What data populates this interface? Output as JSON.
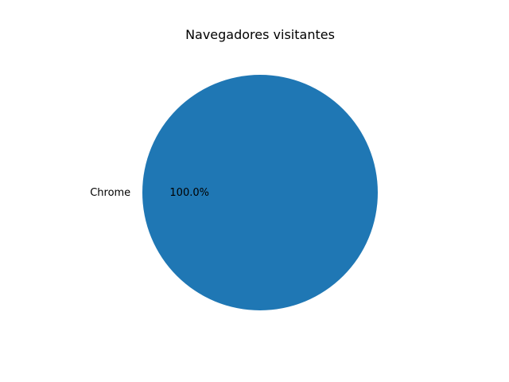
{
  "chart_data": {
    "type": "pie",
    "title": "Navegadores visitantes",
    "categories": [
      "Chrome"
    ],
    "values": [
      100.0
    ],
    "value_labels": [
      "100.0%"
    ],
    "colors": [
      "#1f77b4"
    ],
    "legend": "none"
  }
}
